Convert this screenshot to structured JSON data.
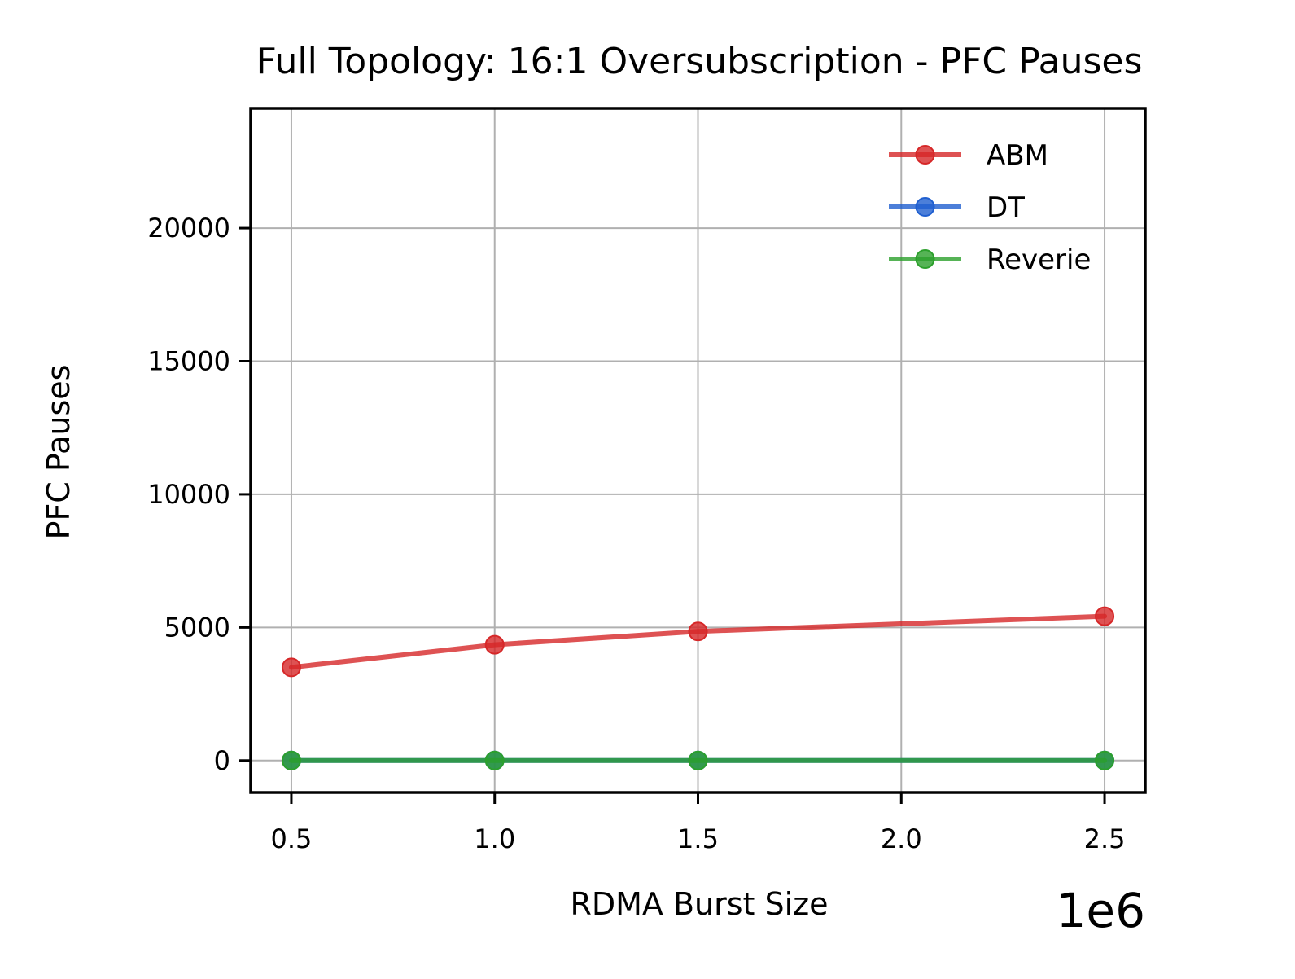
{
  "chart_data": {
    "type": "line",
    "title": "Full Topology: 16:1 Oversubscription - PFC Pauses",
    "xlabel": "RDMA Burst Size",
    "ylabel": "PFC Pauses",
    "x_offset_label": "1e6",
    "x": [
      500000,
      1000000,
      1500000,
      2500000
    ],
    "xlim": [
      400000,
      2600000
    ],
    "ylim": [
      -1200,
      24500
    ],
    "x_ticks": [
      500000,
      1000000,
      1500000,
      2000000,
      2500000
    ],
    "x_tick_labels": [
      "0.5",
      "1.0",
      "1.5",
      "2.0",
      "2.5"
    ],
    "y_ticks": [
      0,
      5000,
      10000,
      15000,
      20000
    ],
    "y_tick_labels": [
      "0",
      "5000",
      "10000",
      "15000",
      "20000"
    ],
    "grid": true,
    "legend_position": "top-right",
    "series": [
      {
        "name": "ABM",
        "color": "#d62728",
        "values": [
          3500,
          4350,
          4850,
          5420
        ]
      },
      {
        "name": "DT",
        "color": "#1f5fd0",
        "values": [
          0,
          0,
          0,
          0
        ]
      },
      {
        "name": "Reverie",
        "color": "#2ca02c",
        "values": [
          0,
          0,
          0,
          0
        ]
      }
    ]
  }
}
